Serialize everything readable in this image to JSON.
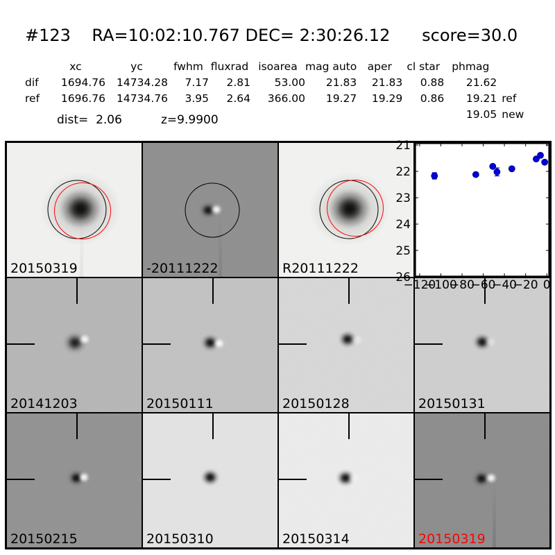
{
  "header": {
    "title": "#123    RA=10:02:10.767 DEC= 2:30:26.12      score=30.0"
  },
  "photometry": {
    "columns": {
      "c0": "",
      "c1": "xc",
      "c2": "yc",
      "c3": "fwhm",
      "c4": "fluxrad",
      "c5": "isoarea",
      "c6": "mag auto",
      "c7": "aper",
      "c8": "cl star",
      "c9": "phmag",
      "c10": ""
    },
    "rows": [
      {
        "label": "dif",
        "xc": "1694.76",
        "yc": "14734.28",
        "fwhm": "7.17",
        "fluxrad": "2.81",
        "isoarea": "53.00",
        "mag_auto": "21.83",
        "aper": "21.83",
        "cl_star": "0.88",
        "phmag": "21.62",
        "suffix": ""
      },
      {
        "label": "ref",
        "xc": "1696.76",
        "yc": "14734.76",
        "fwhm": "3.95",
        "fluxrad": "2.64",
        "isoarea": "366.00",
        "mag_auto": "19.27",
        "aper": "19.29",
        "cl_star": "0.86",
        "phmag": "19.21",
        "suffix": "ref"
      },
      {
        "label": "",
        "xc": "",
        "yc": "",
        "fwhm": "",
        "fluxrad": "",
        "isoarea": "",
        "mag_auto": "",
        "aper": "",
        "cl_star": "",
        "phmag": "19.05",
        "suffix": "new"
      }
    ],
    "dist_label": "dist=  2.06",
    "z_label": "z=9.9900"
  },
  "cutouts": {
    "panels": [
      {
        "label": "20150319",
        "label_color": "#000000",
        "bg": "#f1f1ef"
      },
      {
        "label": "-20111222",
        "label_color": "#000000",
        "bg": "#8e8e8e"
      },
      {
        "label": "R20111222",
        "label_color": "#000000",
        "bg": "#f2f2f0"
      },
      {
        "label": "20141203",
        "label_color": "#000000",
        "bg": "#b6b6b6"
      },
      {
        "label": "20150111",
        "label_color": "#000000",
        "bg": "#c2c2c2"
      },
      {
        "label": "20150128",
        "label_color": "#000000",
        "bg": "#d8d8d8"
      },
      {
        "label": "20150131",
        "label_color": "#000000",
        "bg": "#cfcfcf"
      },
      {
        "label": "20150215",
        "label_color": "#000000",
        "bg": "#929292"
      },
      {
        "label": "20150310",
        "label_color": "#000000",
        "bg": "#e3e3e3"
      },
      {
        "label": "20150314",
        "label_color": "#000000",
        "bg": "#ececec"
      },
      {
        "label": "20150319",
        "label_color": "#ff0000",
        "bg": "#8c8c8c"
      }
    ],
    "annotation_colors": {
      "aperture_black": "#000000",
      "aperture_red": "#ff0000"
    }
  },
  "chart_data": {
    "type": "scatter",
    "title": "",
    "xlabel": "",
    "ylabel": "",
    "x": [
      -106,
      -67,
      -51,
      -47,
      -33,
      -10,
      -6,
      -2
    ],
    "y": [
      22.17,
      22.12,
      21.81,
      22.02,
      21.9,
      21.53,
      21.39,
      21.65
    ],
    "yerr": [
      0.12,
      0.05,
      0.05,
      0.15,
      0.05,
      0.05,
      0.05,
      0.05
    ],
    "xlim": [
      -124.5,
      2.5
    ],
    "ylim": [
      20.92,
      26.0
    ],
    "y_inverted": true,
    "xticks": [
      -120,
      -100,
      -80,
      -60,
      -40,
      -20,
      0
    ],
    "yticks": [
      21,
      22,
      23,
      24,
      25,
      26
    ],
    "marker_color": "#0000dd",
    "grid": false,
    "legend": null
  }
}
